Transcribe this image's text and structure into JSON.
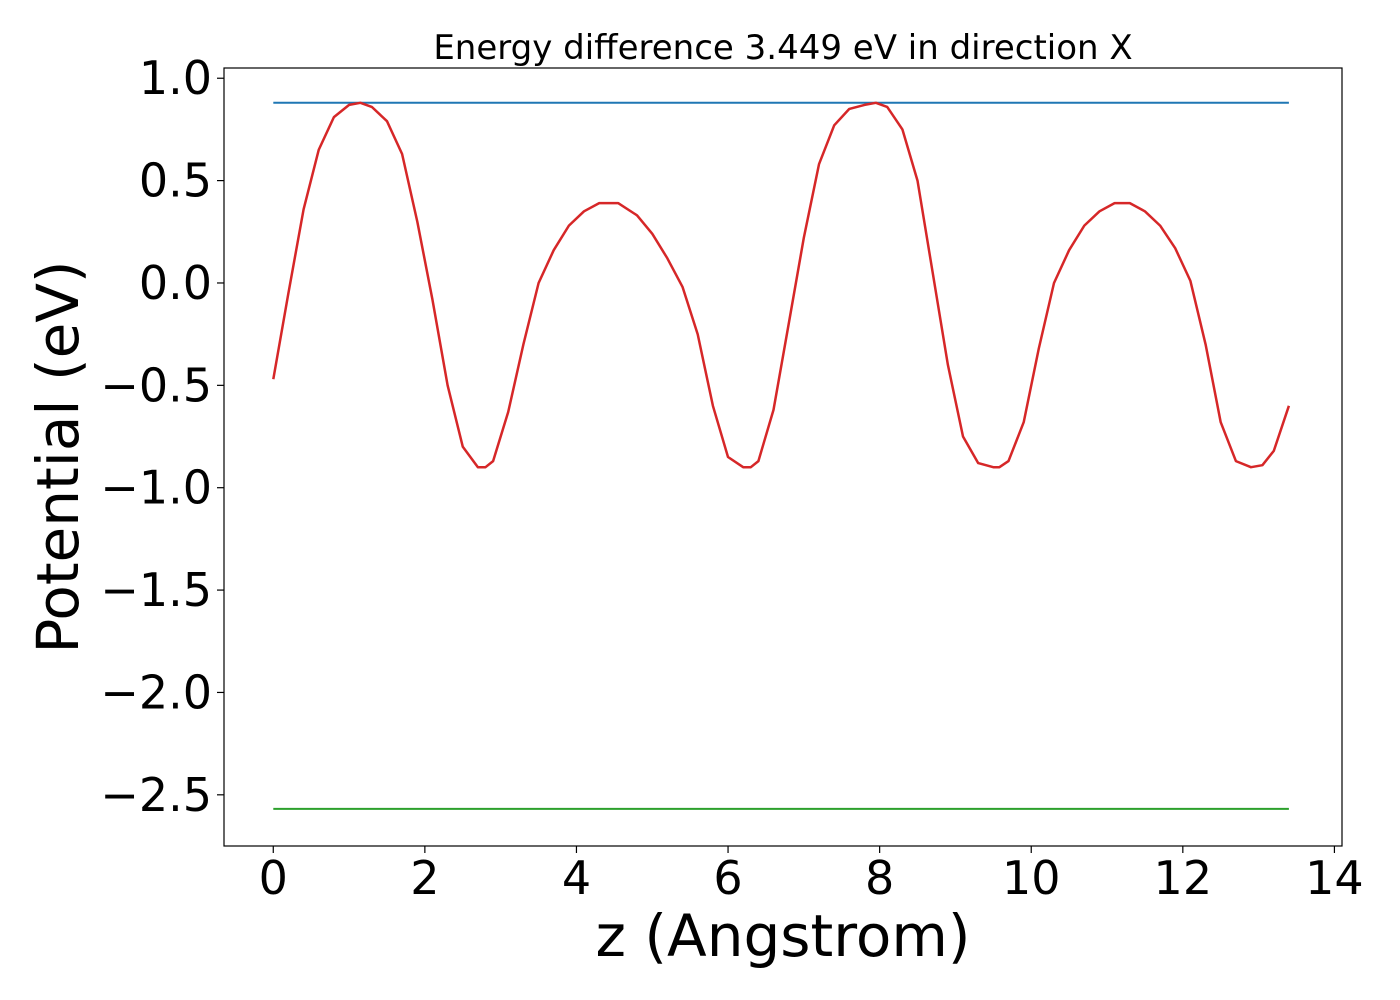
{
  "chart_data": {
    "type": "line",
    "title": "Energy difference 3.449 eV in direction X",
    "xlabel": "z (Angstrom)",
    "ylabel": "Potential (eV)",
    "xlim": [
      -0.65,
      14.1
    ],
    "ylim": [
      -2.75,
      1.05
    ],
    "xticks": [
      0,
      2,
      4,
      6,
      8,
      10,
      12,
      14
    ],
    "yticks": [
      1.0,
      0.5,
      0.0,
      -0.5,
      -1.0,
      -1.5,
      -2.0,
      -2.5
    ],
    "xtick_labels": [
      "0",
      "2",
      "4",
      "6",
      "8",
      "10",
      "12",
      "14"
    ],
    "ytick_labels": [
      "1.0",
      "0.5",
      "0.0",
      "−0.5",
      "−1.0",
      "−1.5",
      "−2.0",
      "−2.5"
    ],
    "grid": false,
    "series": [
      {
        "color": "#1f77b4",
        "style": "line",
        "x": [
          0,
          13.4
        ],
        "y": [
          0.88,
          0.88
        ]
      },
      {
        "color": "#2ca02c",
        "style": "line",
        "x": [
          0,
          13.4
        ],
        "y": [
          -2.569,
          -2.569
        ]
      },
      {
        "color": "#d62728",
        "style": "line",
        "x": [
          0,
          0.2,
          0.4,
          0.6,
          0.8,
          1.0,
          1.15,
          1.3,
          1.5,
          1.7,
          1.9,
          2.1,
          2.3,
          2.5,
          2.7,
          2.8,
          2.9,
          3.1,
          3.3,
          3.5,
          3.7,
          3.9,
          4.1,
          4.3,
          4.55,
          4.8,
          5.0,
          5.2,
          5.4,
          5.6,
          5.8,
          6.0,
          6.2,
          6.3,
          6.4,
          6.6,
          6.8,
          7.0,
          7.2,
          7.4,
          7.6,
          7.8,
          7.95,
          8.1,
          8.3,
          8.5,
          8.7,
          8.9,
          9.1,
          9.3,
          9.5,
          9.58,
          9.7,
          9.9,
          10.1,
          10.3,
          10.5,
          10.7,
          10.9,
          11.1,
          11.3,
          11.5,
          11.7,
          11.9,
          12.1,
          12.3,
          12.5,
          12.7,
          12.9,
          13.05,
          13.2,
          13.4
        ],
        "y": [
          -0.47,
          -0.05,
          0.36,
          0.65,
          0.81,
          0.87,
          0.88,
          0.86,
          0.79,
          0.63,
          0.3,
          -0.08,
          -0.5,
          -0.8,
          -0.9,
          -0.9,
          -0.87,
          -0.63,
          -0.3,
          0.0,
          0.16,
          0.28,
          0.35,
          0.39,
          0.39,
          0.33,
          0.24,
          0.12,
          -0.02,
          -0.25,
          -0.6,
          -0.85,
          -0.9,
          -0.9,
          -0.87,
          -0.62,
          -0.2,
          0.22,
          0.58,
          0.77,
          0.85,
          0.87,
          0.88,
          0.86,
          0.75,
          0.5,
          0.05,
          -0.4,
          -0.75,
          -0.88,
          -0.9,
          -0.9,
          -0.87,
          -0.68,
          -0.32,
          0.0,
          0.16,
          0.28,
          0.35,
          0.39,
          0.39,
          0.35,
          0.28,
          0.17,
          0.01,
          -0.3,
          -0.68,
          -0.87,
          -0.9,
          -0.89,
          -0.82,
          -0.6
        ]
      }
    ]
  }
}
